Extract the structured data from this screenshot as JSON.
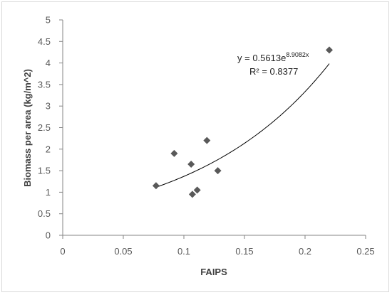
{
  "chart_data": {
    "type": "scatter",
    "title": "",
    "xlabel": "FAIPS",
    "ylabel": "Biomass per area (kg/m^2)",
    "xlim": [
      0,
      0.25
    ],
    "ylim": [
      0,
      5
    ],
    "x_ticks": [
      "0",
      "0.05",
      "0.1",
      "0.15",
      "0.2",
      "0.25"
    ],
    "y_ticks": [
      "0",
      "0.5",
      "1",
      "1.5",
      "2",
      "2.5",
      "3",
      "3.5",
      "4",
      "4.5",
      "5"
    ],
    "grid": false,
    "marker_color": "#595959",
    "trend_color": "#000000",
    "series": [
      {
        "points": [
          {
            "x": 0.077,
            "y": 1.15
          },
          {
            "x": 0.092,
            "y": 1.9
          },
          {
            "x": 0.106,
            "y": 1.65
          },
          {
            "x": 0.107,
            "y": 0.95
          },
          {
            "x": 0.111,
            "y": 1.05
          },
          {
            "x": 0.119,
            "y": 2.2
          },
          {
            "x": 0.128,
            "y": 1.5
          },
          {
            "x": 0.22,
            "y": 4.3
          }
        ]
      }
    ],
    "trendline": {
      "type": "exponential",
      "a": 0.5613,
      "b": 8.9082,
      "x_range": [
        0.077,
        0.22
      ],
      "equation_base": "y = 0.5613e",
      "equation_exponent": "8.9082x",
      "r_squared_label": "R² = 0.8377"
    }
  }
}
